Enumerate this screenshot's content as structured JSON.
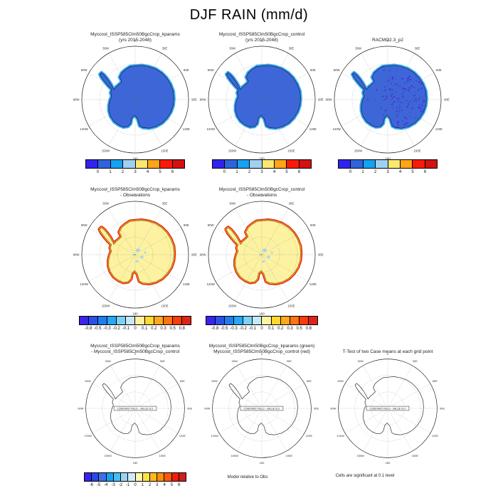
{
  "title": "DJF RAIN (mm/d)",
  "compass_labels": [
    "0",
    "30E",
    "60E",
    "90E",
    "120E",
    "150E",
    "180",
    "150W",
    "120W",
    "90W",
    "60W",
    "30W"
  ],
  "map_colors": {
    "continent_blue": "#3d66d9",
    "fringe_blue": "#3fb0f2",
    "speckle_violet": "#4431d8",
    "continent_yellow": "#fdf2a1",
    "fringe_red": "#e22712",
    "fringe_orange": "#ff9b1d",
    "lake_blue": "#a5d9f2",
    "grid_gray": "#666666"
  },
  "rows": {
    "row1": {
      "panels": [
        {
          "title": "Myccost_ISSP585Clm50BgcCrop_kparams",
          "subtitle": "(yrs 2015-2048)"
        },
        {
          "title": "Myccost_ISSP585Clm50BgcCrop_control",
          "subtitle": "(yrs 2015-2048)"
        },
        {
          "title": "RACMO2.3_p2",
          "subtitle": ""
        }
      ],
      "colorbar": {
        "colors": [
          "#3123ef",
          "#2f62dc",
          "#15a1f2",
          "#9fd0f2",
          "#fce76f",
          "#ffa417",
          "#fb1a0a",
          "#d21111"
        ],
        "labels": [
          "0",
          "1",
          "2",
          "3",
          "4",
          "5",
          "6"
        ]
      }
    },
    "row2": {
      "panels": [
        {
          "title": "Myccost_ISSP585Clm50BgcCrop_kparams",
          "subtitle": "- Observations"
        },
        {
          "title": "Myccost_ISSP585Clm50BgcCrop_control",
          "subtitle": "- Observations"
        }
      ],
      "colorbar": {
        "colors": [
          "#3a23ee",
          "#2b50e6",
          "#1f7df0",
          "#27a7f5",
          "#7fd0f6",
          "#c3e8f8",
          "#fff1a0",
          "#ffd92e",
          "#ffa81e",
          "#ff7410",
          "#f93c0c",
          "#dd2418"
        ],
        "labels": [
          "-0.8",
          "-0.5",
          "-0.3",
          "-0.2",
          "-0.1",
          "0",
          "0.1",
          "0.2",
          "0.3",
          "0.5",
          "0.8"
        ]
      }
    },
    "row3": {
      "panels": [
        {
          "title": "Myccost_ISSP585Clm50BgcCrop_kparams",
          "subtitle": "- Myccost_ISSP585Clm50BgcCrop_control",
          "box_label": "CONSTANT FIELD - VALUE IS 0"
        },
        {
          "title": "Myccost_ISSP585Clm50BgcCrop_kparams (green)",
          "subtitle": "Myccost_ISSP585Clm50BgcCrop_control (red)",
          "box_label": "CONSTANT FIELD - VALUE IS 0"
        },
        {
          "title": "T-Test of two Case means at each grid point",
          "subtitle": "",
          "box_label": "CONSTANT FIELD - VALUE IS 0"
        }
      ],
      "colorbar": {
        "colors": [
          "#3a23ee",
          "#2947e4",
          "#3f6ee8",
          "#18a0f0",
          "#3fc0f5",
          "#9ed4f2",
          "#cfeaf8",
          "#fff6b0",
          "#ffe345",
          "#ffb81e",
          "#ff8c0a",
          "#fb5a08",
          "#f01e08",
          "#cf2020"
        ],
        "labels": [
          "-6",
          "-5",
          "-4",
          "-3",
          "-2",
          "-1",
          "0",
          "1",
          "2",
          "3",
          "4",
          "5",
          "6"
        ]
      }
    }
  },
  "footnotes": {
    "model_rel": "Model relative to Obs",
    "cells_sig": "Cells are significant at 0.1 level"
  },
  "chart_data": [
    {
      "type": "heatmap",
      "panel": "row1-col1",
      "title": "Myccost_ISSP585Clm50BgcCrop_kparams (yrs 2015-2048)",
      "variable": "DJF RAIN",
      "units": "mm/d",
      "projection": "Antarctic polar stereographic",
      "colorbar_ticks": [
        0,
        1,
        2,
        3,
        4,
        5,
        6
      ],
      "pattern": "continent interior ~1-2 mm/d (royal blue), coastal fringe ~2-3 mm/d (light blue)"
    },
    {
      "type": "heatmap",
      "panel": "row1-col2",
      "title": "Myccost_ISSP585Clm50BgcCrop_control (yrs 2015-2048)",
      "variable": "DJF RAIN",
      "units": "mm/d",
      "projection": "Antarctic polar stereographic",
      "colorbar_ticks": [
        0,
        1,
        2,
        3,
        4,
        5,
        6
      ],
      "pattern": "continent interior ~1-2 mm/d (royal blue), coastal fringe ~2-3 mm/d (light blue)"
    },
    {
      "type": "heatmap",
      "panel": "row1-col3",
      "title": "RACMO2.3_p2",
      "variable": "DJF RAIN",
      "units": "mm/d",
      "projection": "Antarctic polar stereographic",
      "colorbar_ticks": [
        0,
        1,
        2,
        3,
        4,
        5,
        6
      ],
      "pattern": "interior ~1-2 mm/d with scattered darker 0-1 mm/d cells over East Antarctica"
    },
    {
      "type": "heatmap",
      "panel": "row2-col1",
      "title": "Myccost_ISSP585Clm50BgcCrop_kparams - Observations",
      "units": "mm/d",
      "colorbar_ticks": [
        -0.8,
        -0.5,
        -0.3,
        -0.2,
        -0.1,
        0,
        0.1,
        0.2,
        0.3,
        0.5,
        0.8
      ],
      "pattern": "interior ~+0.1 (pale yellow), coastal ring >= +0.5 (red/orange), few interior cells ~-0.1 (light blue)"
    },
    {
      "type": "heatmap",
      "panel": "row2-col2",
      "title": "Myccost_ISSP585Clm50BgcCrop_control - Observations",
      "units": "mm/d",
      "colorbar_ticks": [
        -0.8,
        -0.5,
        -0.3,
        -0.2,
        -0.1,
        0,
        0.1,
        0.2,
        0.3,
        0.5,
        0.8
      ],
      "pattern": "interior ~+0.1 (pale yellow), coastal ring >= +0.5 (red/orange), few interior cells ~-0.1 (light blue)"
    },
    {
      "type": "heatmap",
      "panel": "row3-col1",
      "title": "Myccost_ISSP585Clm50BgcCrop_kparams - Myccost_ISSP585Clm50BgcCrop_control",
      "colorbar_ticks": [
        -6,
        -5,
        -4,
        -3,
        -2,
        -1,
        0,
        1,
        2,
        3,
        4,
        5,
        6
      ],
      "pattern": "CONSTANT FIELD - VALUE IS 0 (outline map only, no shading)"
    },
    {
      "type": "heatmap",
      "panel": "row3-col2",
      "title": "Myccost_ISSP585Clm50BgcCrop_kparams (green) / Myccost_ISSP585Clm50BgcCrop_control (red)",
      "note": "Model relative to Obs",
      "pattern": "CONSTANT FIELD - VALUE IS 0 (outline map only)"
    },
    {
      "type": "heatmap",
      "panel": "row3-col3",
      "title": "T-Test of two Case means at each grid point",
      "note": "Cells are significant at 0.1 level",
      "pattern": "CONSTANT FIELD - VALUE IS 0 (outline map only, no significant cells shaded)"
    }
  ]
}
